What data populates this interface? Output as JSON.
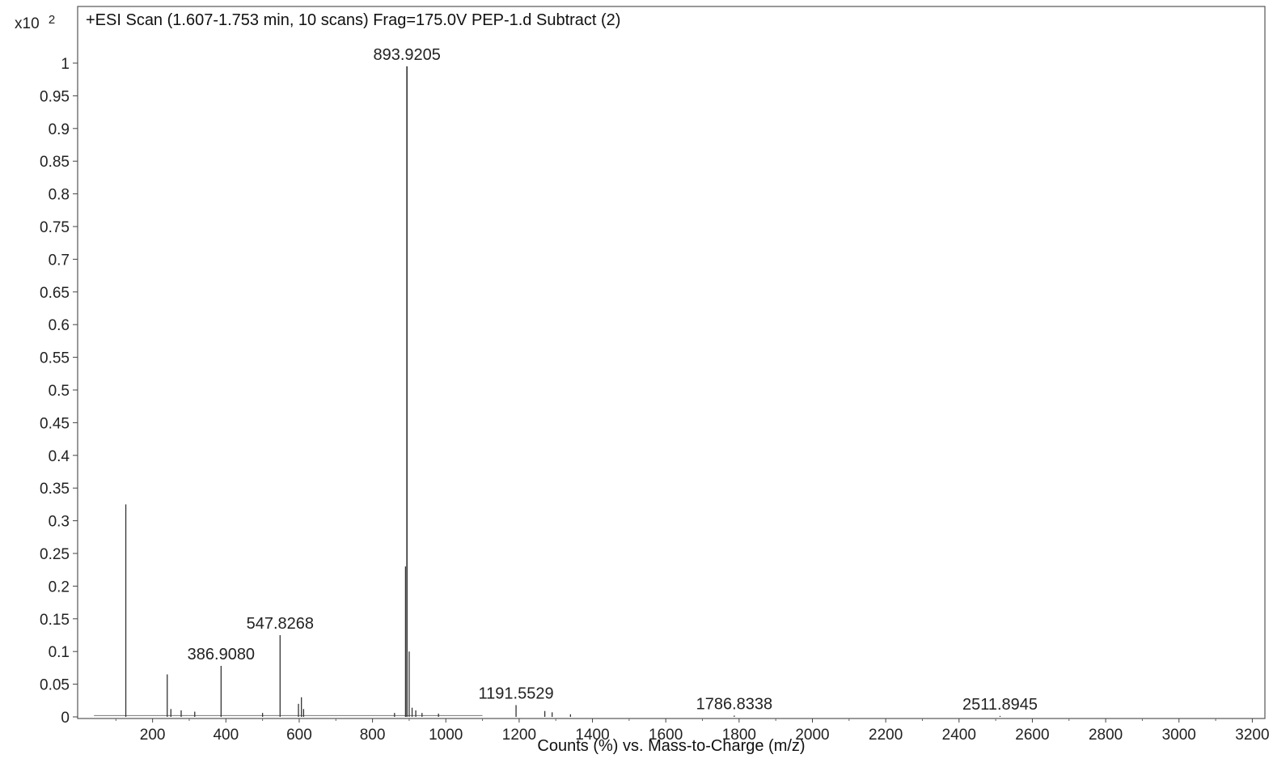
{
  "chart_data": {
    "type": "bar",
    "title": "+ESI Scan (1.607-1.753 min, 10 scans) Frag=175.0V PEP-1.d  Subtract (2)",
    "xlabel": "Counts (%) vs. Mass-to-Charge (m/z)",
    "ylabel": "",
    "y_multiplier": {
      "base": "x10",
      "exponent": "2"
    },
    "xlim": [
      0,
      3230
    ],
    "ylim": [
      0,
      1.005
    ],
    "x_ticks": [
      200,
      400,
      600,
      800,
      1000,
      1200,
      1400,
      1600,
      1800,
      2000,
      2200,
      2400,
      2600,
      2800,
      3000,
      3200
    ],
    "y_ticks": [
      {
        "value": 0,
        "label": "0"
      },
      {
        "value": 0.05,
        "label": "0.05"
      },
      {
        "value": 0.1,
        "label": "0.1"
      },
      {
        "value": 0.15,
        "label": "0.15"
      },
      {
        "value": 0.2,
        "label": "0.2"
      },
      {
        "value": 0.25,
        "label": "0.25"
      },
      {
        "value": 0.3,
        "label": "0.3"
      },
      {
        "value": 0.35,
        "label": "0.35"
      },
      {
        "value": 0.4,
        "label": "0.4"
      },
      {
        "value": 0.45,
        "label": "0.45"
      },
      {
        "value": 0.5,
        "label": "0.5"
      },
      {
        "value": 0.55,
        "label": "0.55"
      },
      {
        "value": 0.6,
        "label": "0.6"
      },
      {
        "value": 0.65,
        "label": "0.65"
      },
      {
        "value": 0.7,
        "label": "0.7"
      },
      {
        "value": 0.75,
        "label": "0.75"
      },
      {
        "value": 0.8,
        "label": "0.8"
      },
      {
        "value": 0.85,
        "label": "0.85"
      },
      {
        "value": 0.9,
        "label": "0.9"
      },
      {
        "value": 0.95,
        "label": "0.95"
      },
      {
        "value": 1,
        "label": "1"
      }
    ],
    "grid": false,
    "color": "#333333",
    "peaks": [
      {
        "mz": 127,
        "intensity": 0.325
      },
      {
        "mz": 240,
        "intensity": 0.065
      },
      {
        "mz": 250,
        "intensity": 0.012
      },
      {
        "mz": 278,
        "intensity": 0.01
      },
      {
        "mz": 315,
        "intensity": 0.008
      },
      {
        "mz": 386.908,
        "intensity": 0.078,
        "label": "386.9080"
      },
      {
        "mz": 500,
        "intensity": 0.006
      },
      {
        "mz": 547.8268,
        "intensity": 0.125,
        "label": "547.8268"
      },
      {
        "mz": 598,
        "intensity": 0.02
      },
      {
        "mz": 606,
        "intensity": 0.03
      },
      {
        "mz": 612,
        "intensity": 0.012
      },
      {
        "mz": 860,
        "intensity": 0.006
      },
      {
        "mz": 890,
        "intensity": 0.23
      },
      {
        "mz": 893.9205,
        "intensity": 0.995,
        "label": "893.9205"
      },
      {
        "mz": 900,
        "intensity": 0.1
      },
      {
        "mz": 908,
        "intensity": 0.014
      },
      {
        "mz": 918,
        "intensity": 0.01
      },
      {
        "mz": 935,
        "intensity": 0.006
      },
      {
        "mz": 980,
        "intensity": 0.005
      },
      {
        "mz": 1191.5529,
        "intensity": 0.018,
        "label": "1191.5529"
      },
      {
        "mz": 1270,
        "intensity": 0.009
      },
      {
        "mz": 1290,
        "intensity": 0.007
      },
      {
        "mz": 1340,
        "intensity": 0.004
      },
      {
        "mz": 1786.8338,
        "intensity": 0.002,
        "label": "1786.8338"
      },
      {
        "mz": 2511.8945,
        "intensity": 0.0015,
        "label": "2511.8945"
      }
    ]
  }
}
